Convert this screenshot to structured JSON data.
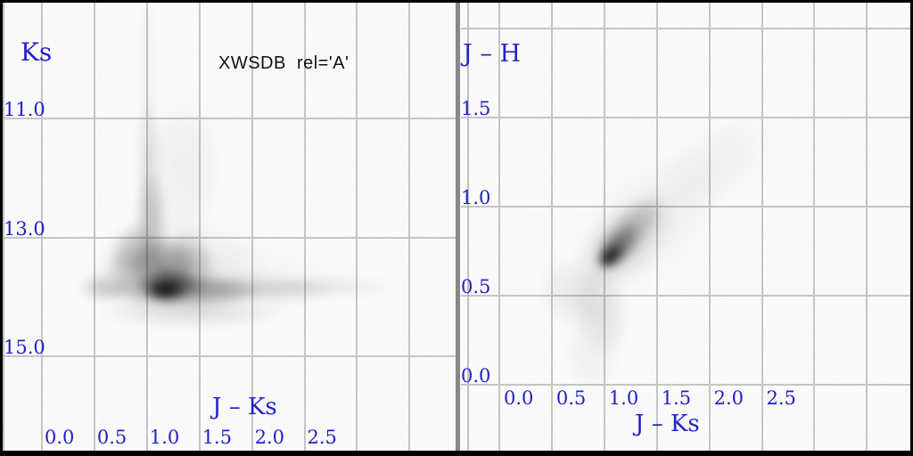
{
  "title": "XWSDB  rel='A'",
  "colors": {
    "label_blue": "#2222c8",
    "grid_gray": "#c9c9c9",
    "divider_gray": "#888888",
    "border_black": "#000000",
    "density_ink": "#000000",
    "background": "#ffffff"
  },
  "chart_data": [
    {
      "id": "colour-magnitude-diagram",
      "type": "heatmap",
      "subtype": "2d-density-hess-diagram",
      "title": "XWSDB  rel='A'",
      "xlabel": "J – Ks",
      "ylabel": "Ks",
      "x_ticks": [
        0.0,
        0.5,
        1.0,
        1.5,
        2.0,
        2.5
      ],
      "x_tick_labels": [
        "0.0",
        "0.5",
        "1.0",
        "1.5",
        "2.0",
        "2.5"
      ],
      "x_grid_values": [
        0,
        0.5,
        1,
        1.5,
        2,
        2.5,
        3,
        3.5
      ],
      "xlim": [
        -0.4,
        3.95
      ],
      "y_ticks": [
        11.0,
        13.0,
        15.0
      ],
      "y_tick_labels": [
        "11.0",
        "13.0",
        "15.0"
      ],
      "y_grid_values": [
        11,
        13,
        15
      ],
      "ylim": [
        9.05,
        16.6
      ],
      "y_axis_increases_downward": true,
      "grid": true,
      "legend": false,
      "colormap": "grayscale, white = empty, black = highest source density",
      "density_features": [
        {
          "name": "bright vertical plume",
          "x": 1.0,
          "y_range": [
            9.1,
            13.0
          ],
          "intensity": "faint, narrow, darkening toward fainter magnitudes"
        },
        {
          "name": "triangular dense core",
          "x": 1.15,
          "y_range": [
            13.0,
            14.2
          ],
          "intensity": "dark"
        },
        {
          "name": "peak density clump",
          "x": 1.15,
          "y": 13.9,
          "intensity": "black (maximum)"
        },
        {
          "name": "red horizontal tail",
          "x_range": [
            1.5,
            3.4
          ],
          "y": 13.9,
          "intensity": "fading to very faint"
        }
      ]
    },
    {
      "id": "colour-colour-diagram",
      "type": "heatmap",
      "subtype": "2d-density-hess-diagram",
      "title": "",
      "xlabel": "J – Ks",
      "ylabel": "J – H",
      "x_ticks": [
        0.0,
        0.5,
        1.0,
        1.5,
        2.0,
        2.5
      ],
      "x_tick_labels": [
        "0.0",
        "0.5",
        "1.0",
        "1.5",
        "2.0",
        "2.5"
      ],
      "x_grid_values": [
        0,
        0.5,
        1,
        1.5,
        2,
        2.5,
        3,
        3.5
      ],
      "xlim": [
        -0.3,
        3.9
      ],
      "y_ticks": [
        0.0,
        0.5,
        1.0,
        1.5
      ],
      "y_tick_labels": [
        "0.0",
        "0.5",
        "1.0",
        "1.5"
      ],
      "y_grid_values": [
        0,
        0.5,
        1,
        1.5,
        2
      ],
      "ylim": [
        -0.4,
        2.15
      ],
      "grid": true,
      "legend": false,
      "colormap": "grayscale, white = empty, black = highest source density",
      "density_features": [
        {
          "name": "stellar locus peak",
          "x": 1.05,
          "y": 0.72,
          "intensity": "black (maximum)"
        },
        {
          "name": "elongated diagonal locus",
          "from": [
            0.55,
            0.25
          ],
          "to": [
            1.6,
            1.15
          ],
          "intensity": "medium, slope ≈ +1"
        },
        {
          "name": "faint reddened plume",
          "from": [
            1.5,
            1.1
          ],
          "to": [
            2.2,
            1.5
          ],
          "intensity": "very faint"
        },
        {
          "name": "faint blue/low tail",
          "x": 0.9,
          "y_range": [
            -0.2,
            0.4
          ],
          "intensity": "very faint"
        }
      ]
    }
  ]
}
